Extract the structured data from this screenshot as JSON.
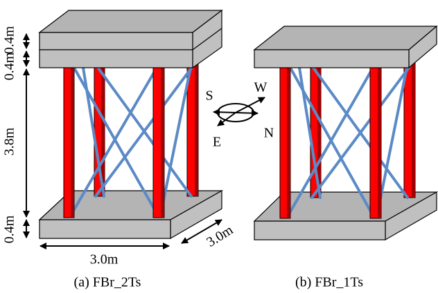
{
  "left_frame": {
    "dimensions": {
      "top_slab": "0.4m",
      "second_slab": "0.4m",
      "height": "3.8m",
      "base_slab": "0.4m",
      "width": "3.0m",
      "depth": "3.0m"
    },
    "caption": "(a) FBr_2Ts"
  },
  "compass": {
    "south": "S",
    "west": "W",
    "east": "E",
    "north": "N"
  },
  "right_frame": {
    "caption": "(b) FBr_1Ts"
  }
}
